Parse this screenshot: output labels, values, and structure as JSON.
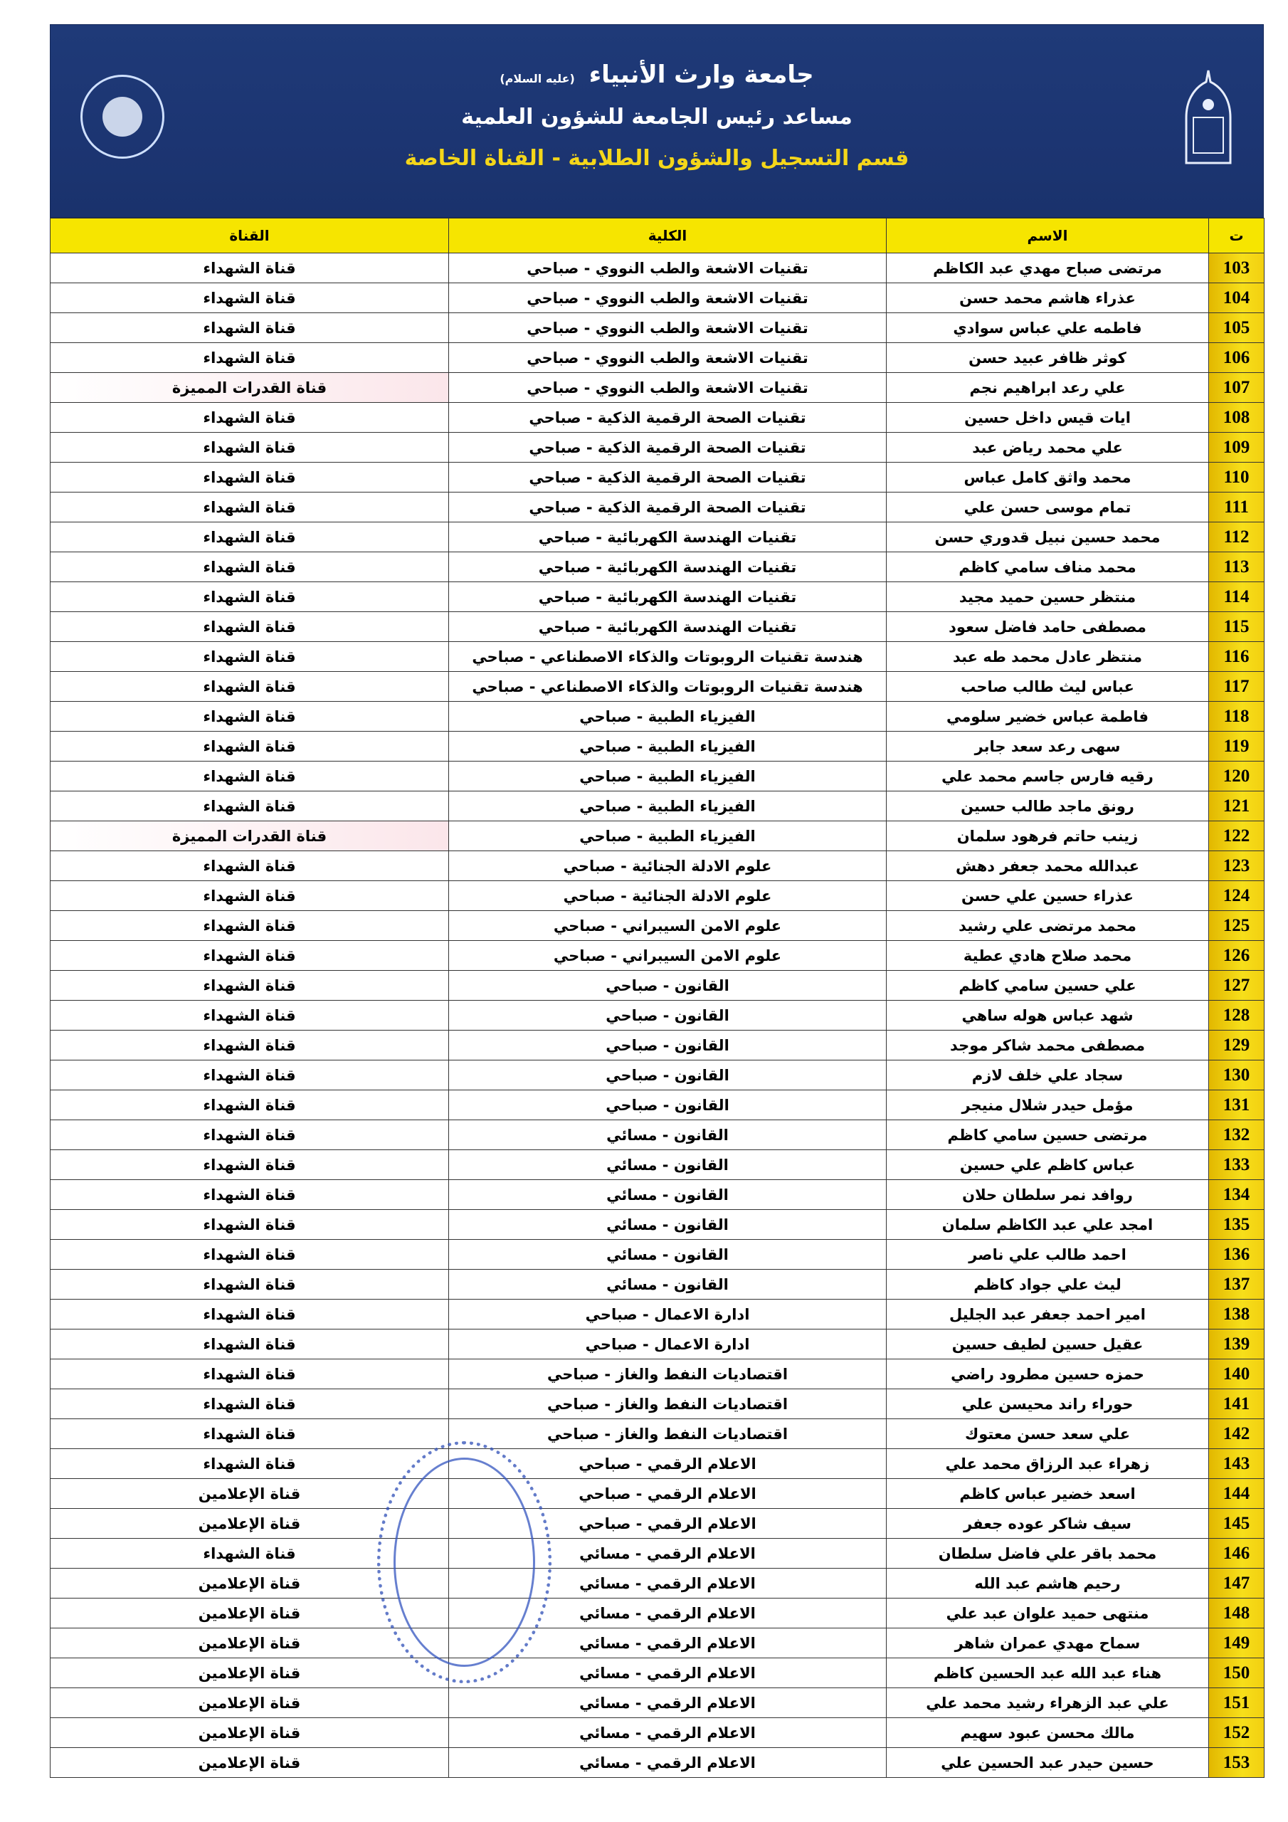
{
  "header": {
    "university": "جامعة وارث الأنبياء",
    "honorific": "(عليه السلام)",
    "office": "مساعد رئيس الجامعة للشؤون العلمية",
    "department": "قسم التسجيل والشؤون الطلابية - القناة الخاصة"
  },
  "colors": {
    "banner": "#1c3572",
    "header_row": "#f6e500",
    "number_cell": "#f2cf10",
    "highlight": "#fbe6ea"
  },
  "table": {
    "columns": [
      "ت",
      "الاسم",
      "الكلية",
      "القناة"
    ],
    "rows": [
      [
        "103",
        "مرتضى صباح مهدي عبد الكاظم",
        "تقنيات الاشعة والطب النووي - صباحي",
        "قناة الشهداء"
      ],
      [
        "104",
        "عذراء هاشم محمد حسن",
        "تقنيات الاشعة والطب النووي - صباحي",
        "قناة الشهداء"
      ],
      [
        "105",
        "فاطمه علي عباس سوادي",
        "تقنيات الاشعة والطب النووي - صباحي",
        "قناة الشهداء"
      ],
      [
        "106",
        "كوثر ظافر عبيد حسن",
        "تقنيات الاشعة والطب النووي - صباحي",
        "قناة الشهداء"
      ],
      [
        "107",
        "علي رعد ابراهيم نجم",
        "تقنيات الاشعة والطب النووي - صباحي",
        "قناة القدرات المميزة"
      ],
      [
        "108",
        "ايات قيس داخل حسين",
        "تقنيات الصحة الرقمية الذكية - صباحي",
        "قناة الشهداء"
      ],
      [
        "109",
        "علي محمد رياض عبد",
        "تقنيات الصحة الرقمية الذكية - صباحي",
        "قناة الشهداء"
      ],
      [
        "110",
        "محمد واثق كامل عباس",
        "تقنيات الصحة الرقمية الذكية - صباحي",
        "قناة الشهداء"
      ],
      [
        "111",
        "تمام موسى حسن علي",
        "تقنيات الصحة الرقمية الذكية - صباحي",
        "قناة الشهداء"
      ],
      [
        "112",
        "محمد حسين نبيل قدوري حسن",
        "تقنيات الهندسة الكهربائية - صباحي",
        "قناة الشهداء"
      ],
      [
        "113",
        "محمد مناف سامي كاظم",
        "تقنيات الهندسة الكهربائية - صباحي",
        "قناة الشهداء"
      ],
      [
        "114",
        "منتظر حسين حميد مجيد",
        "تقنيات الهندسة الكهربائية - صباحي",
        "قناة الشهداء"
      ],
      [
        "115",
        "مصطفى حامد فاضل سعود",
        "تقنيات الهندسة الكهربائية - صباحي",
        "قناة الشهداء"
      ],
      [
        "116",
        "منتظر عادل محمد طه عبد",
        "هندسة تقنيات الروبوتات والذكاء الاصطناعي - صباحي",
        "قناة الشهداء"
      ],
      [
        "117",
        "عباس ليث طالب صاحب",
        "هندسة تقنيات الروبوتات والذكاء الاصطناعي - صباحي",
        "قناة الشهداء"
      ],
      [
        "118",
        "فاطمة عباس خضير سلومي",
        "الفيزياء الطبية - صباحي",
        "قناة الشهداء"
      ],
      [
        "119",
        "سهى رعد سعد جابر",
        "الفيزياء الطبية - صباحي",
        "قناة الشهداء"
      ],
      [
        "120",
        "رقيه فارس جاسم محمد علي",
        "الفيزياء الطبية - صباحي",
        "قناة الشهداء"
      ],
      [
        "121",
        "رونق ماجد طالب حسين",
        "الفيزياء الطبية - صباحي",
        "قناة الشهداء"
      ],
      [
        "122",
        "زينب حاتم فرهود سلمان",
        "الفيزياء الطبية - صباحي",
        "قناة القدرات المميزة"
      ],
      [
        "123",
        "عبدالله محمد جعفر دهش",
        "علوم الادلة الجنائية - صباحي",
        "قناة الشهداء"
      ],
      [
        "124",
        "عذراء حسين علي حسن",
        "علوم الادلة الجنائية - صباحي",
        "قناة الشهداء"
      ],
      [
        "125",
        "محمد مرتضى علي رشيد",
        "علوم الامن السيبراني - صباحي",
        "قناة الشهداء"
      ],
      [
        "126",
        "محمد صلاح هادي عطية",
        "علوم الامن السيبراني - صباحي",
        "قناة الشهداء"
      ],
      [
        "127",
        "علي حسين سامي كاظم",
        "القانون - صباحي",
        "قناة الشهداء"
      ],
      [
        "128",
        "شهد عباس هوله ساهي",
        "القانون - صباحي",
        "قناة الشهداء"
      ],
      [
        "129",
        "مصطفى محمد شاكر موجد",
        "القانون - صباحي",
        "قناة الشهداء"
      ],
      [
        "130",
        "سجاد علي خلف لازم",
        "القانون - صباحي",
        "قناة الشهداء"
      ],
      [
        "131",
        "مؤمل حيدر شلال منيجر",
        "القانون - صباحي",
        "قناة الشهداء"
      ],
      [
        "132",
        "مرتضى حسين سامي كاظم",
        "القانون - مسائي",
        "قناة الشهداء"
      ],
      [
        "133",
        "عباس كاظم علي حسين",
        "القانون - مسائي",
        "قناة الشهداء"
      ],
      [
        "134",
        "روافد نمر سلطان حلان",
        "القانون - مسائي",
        "قناة الشهداء"
      ],
      [
        "135",
        "امجد علي عبد الكاظم سلمان",
        "القانون - مسائي",
        "قناة الشهداء"
      ],
      [
        "136",
        "احمد طالب علي ناصر",
        "القانون - مسائي",
        "قناة الشهداء"
      ],
      [
        "137",
        "ليث علي جواد كاظم",
        "القانون - مسائي",
        "قناة الشهداء"
      ],
      [
        "138",
        "امير احمد جعفر عبد الجليل",
        "ادارة الاعمال - صباحي",
        "قناة الشهداء"
      ],
      [
        "139",
        "عقيل حسين لطيف حسين",
        "ادارة الاعمال - صباحي",
        "قناة الشهداء"
      ],
      [
        "140",
        "حمزه حسين مطرود راضي",
        "اقتصاديات النفط والغاز - صباحي",
        "قناة الشهداء"
      ],
      [
        "141",
        "حوراء راند محيسن علي",
        "اقتصاديات النفط والغاز - صباحي",
        "قناة الشهداء"
      ],
      [
        "142",
        "علي سعد حسن معتوك",
        "اقتصاديات النفط والغاز - صباحي",
        "قناة الشهداء"
      ],
      [
        "143",
        "زهراء عبد الرزاق محمد علي",
        "الاعلام الرقمي - صباحي",
        "قناة الشهداء"
      ],
      [
        "144",
        "اسعد خضير عباس كاظم",
        "الاعلام الرقمي - صباحي",
        "قناة الإعلامين"
      ],
      [
        "145",
        "سيف شاكر عوده جعفر",
        "الاعلام الرقمي - صباحي",
        "قناة الإعلامين"
      ],
      [
        "146",
        "محمد باقر علي فاضل سلطان",
        "الاعلام الرقمي - مسائي",
        "قناة الشهداء"
      ],
      [
        "147",
        "رحيم هاشم عبد الله",
        "الاعلام الرقمي - مسائي",
        "قناة الإعلامين"
      ],
      [
        "148",
        "منتهى حميد علوان عبد علي",
        "الاعلام الرقمي - مسائي",
        "قناة الإعلامين"
      ],
      [
        "149",
        "سماح مهدي عمران شاهر",
        "الاعلام الرقمي - مسائي",
        "قناة الإعلامين"
      ],
      [
        "150",
        "هناء عبد الله عبد الحسين كاظم",
        "الاعلام الرقمي - مسائي",
        "قناة الإعلامين"
      ],
      [
        "151",
        "علي عبد الزهراء رشيد محمد علي",
        "الاعلام الرقمي - مسائي",
        "قناة الإعلامين"
      ],
      [
        "152",
        "مالك محسن عبود سهيم",
        "الاعلام الرقمي - مسائي",
        "قناة الإعلامين"
      ],
      [
        "153",
        "حسين حيدر عبد الحسين علي",
        "الاعلام الرقمي - مسائي",
        "قناة الإعلامين"
      ]
    ]
  }
}
